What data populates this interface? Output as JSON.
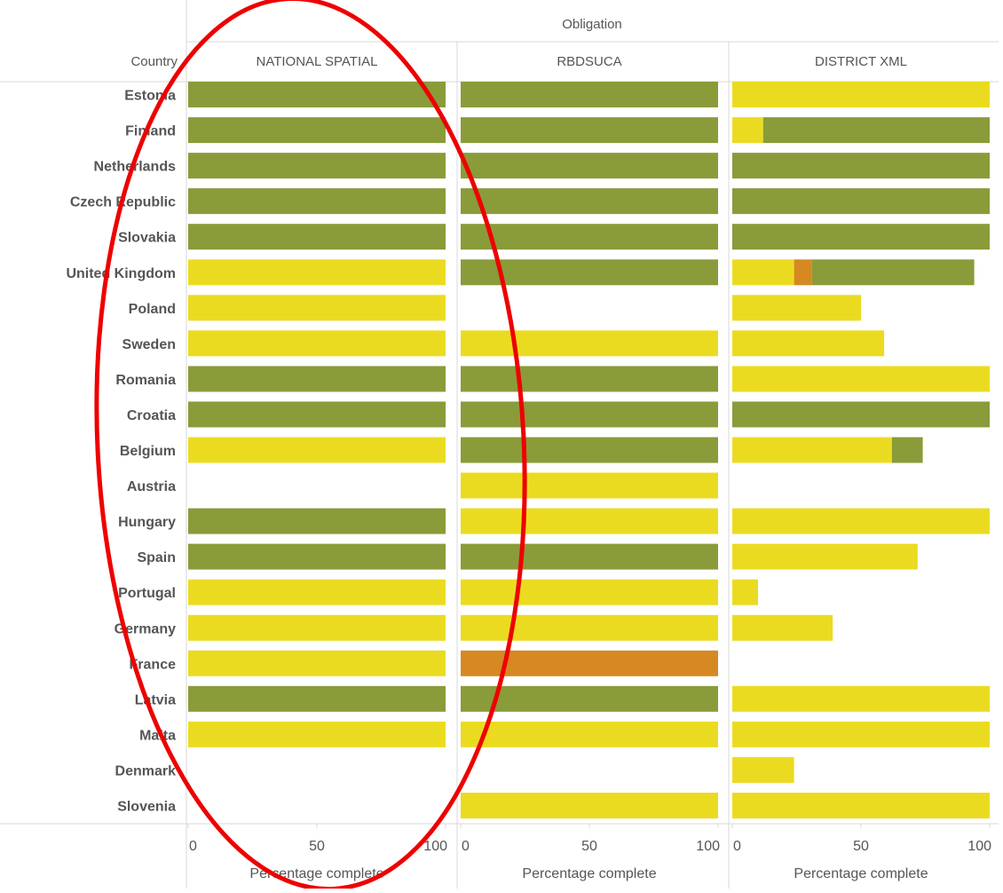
{
  "header": {
    "obligation_label": "Obligation",
    "country_label": "Country"
  },
  "colors": {
    "yellow": "#EBDB20",
    "green": "#8A9B3A",
    "orange": "#D68823",
    "annotation_circle": "#EE0000",
    "grid": "#D9D9D9",
    "text": "#555555"
  },
  "annotation": {
    "shape": "ellipse",
    "color": "red",
    "highlights": "NATIONAL SPATIAL"
  },
  "chart_data": {
    "type": "bar",
    "orientation": "horizontal",
    "stacked": true,
    "facet_by": "Obligation",
    "row_dimension": "Country",
    "x_axis": {
      "label": "Percentage complete",
      "range": [
        0,
        100
      ],
      "ticks": [
        0,
        50,
        100
      ]
    },
    "status_colors": [
      "yellow",
      "orange",
      "green"
    ],
    "countries": [
      "Estonia",
      "Finland",
      "Netherlands",
      "Czech Republic",
      "Slovakia",
      "United Kingdom",
      "Poland",
      "Sweden",
      "Romania",
      "Croatia",
      "Belgium",
      "Austria",
      "Hungary",
      "Spain",
      "Portugal",
      "Germany",
      "France",
      "Latvia",
      "Malta",
      "Denmark",
      "Slovenia"
    ],
    "panels": [
      {
        "name": "NATIONAL SPATIAL",
        "rows": [
          [
            {
              "color": "green",
              "value": 100
            }
          ],
          [
            {
              "color": "green",
              "value": 100
            }
          ],
          [
            {
              "color": "green",
              "value": 100
            }
          ],
          [
            {
              "color": "green",
              "value": 100
            }
          ],
          [
            {
              "color": "green",
              "value": 100
            }
          ],
          [
            {
              "color": "yellow",
              "value": 100
            }
          ],
          [
            {
              "color": "yellow",
              "value": 100
            }
          ],
          [
            {
              "color": "yellow",
              "value": 100
            }
          ],
          [
            {
              "color": "green",
              "value": 100
            }
          ],
          [
            {
              "color": "green",
              "value": 100
            }
          ],
          [
            {
              "color": "yellow",
              "value": 100
            }
          ],
          [],
          [
            {
              "color": "green",
              "value": 100
            }
          ],
          [
            {
              "color": "green",
              "value": 100
            }
          ],
          [
            {
              "color": "yellow",
              "value": 100
            }
          ],
          [
            {
              "color": "yellow",
              "value": 100
            }
          ],
          [
            {
              "color": "yellow",
              "value": 100
            }
          ],
          [
            {
              "color": "green",
              "value": 100
            }
          ],
          [
            {
              "color": "yellow",
              "value": 100
            }
          ],
          [],
          []
        ]
      },
      {
        "name": "RBDSUCA",
        "rows": [
          [
            {
              "color": "green",
              "value": 100
            }
          ],
          [
            {
              "color": "green",
              "value": 100
            }
          ],
          [
            {
              "color": "green",
              "value": 100
            }
          ],
          [
            {
              "color": "green",
              "value": 100
            }
          ],
          [
            {
              "color": "green",
              "value": 100
            }
          ],
          [
            {
              "color": "green",
              "value": 100
            }
          ],
          [],
          [
            {
              "color": "yellow",
              "value": 100
            }
          ],
          [
            {
              "color": "green",
              "value": 100
            }
          ],
          [
            {
              "color": "green",
              "value": 100
            }
          ],
          [
            {
              "color": "green",
              "value": 100
            }
          ],
          [
            {
              "color": "yellow",
              "value": 100
            }
          ],
          [
            {
              "color": "yellow",
              "value": 100
            }
          ],
          [
            {
              "color": "green",
              "value": 100
            }
          ],
          [
            {
              "color": "yellow",
              "value": 100
            }
          ],
          [
            {
              "color": "yellow",
              "value": 100
            }
          ],
          [
            {
              "color": "orange",
              "value": 100
            }
          ],
          [
            {
              "color": "green",
              "value": 100
            }
          ],
          [
            {
              "color": "yellow",
              "value": 100
            }
          ],
          [],
          [
            {
              "color": "yellow",
              "value": 100
            }
          ]
        ]
      },
      {
        "name": "DISTRICT XML",
        "rows": [
          [
            {
              "color": "yellow",
              "value": 100
            }
          ],
          [
            {
              "color": "yellow",
              "value": 12
            },
            {
              "color": "green",
              "value": 88
            }
          ],
          [
            {
              "color": "green",
              "value": 100
            }
          ],
          [
            {
              "color": "green",
              "value": 100
            }
          ],
          [
            {
              "color": "green",
              "value": 100
            }
          ],
          [
            {
              "color": "yellow",
              "value": 24
            },
            {
              "color": "orange",
              "value": 7
            },
            {
              "color": "green",
              "value": 63
            }
          ],
          [
            {
              "color": "yellow",
              "value": 50
            }
          ],
          [
            {
              "color": "yellow",
              "value": 59
            }
          ],
          [
            {
              "color": "yellow",
              "value": 100
            }
          ],
          [
            {
              "color": "green",
              "value": 100
            }
          ],
          [
            {
              "color": "yellow",
              "value": 62
            },
            {
              "color": "green",
              "value": 12
            }
          ],
          [],
          [
            {
              "color": "yellow",
              "value": 100
            }
          ],
          [
            {
              "color": "yellow",
              "value": 72
            }
          ],
          [
            {
              "color": "yellow",
              "value": 10
            }
          ],
          [
            {
              "color": "yellow",
              "value": 39
            }
          ],
          [],
          [
            {
              "color": "yellow",
              "value": 100
            }
          ],
          [
            {
              "color": "yellow",
              "value": 100
            }
          ],
          [
            {
              "color": "yellow",
              "value": 24
            }
          ],
          [
            {
              "color": "yellow",
              "value": 100
            }
          ]
        ]
      }
    ]
  }
}
